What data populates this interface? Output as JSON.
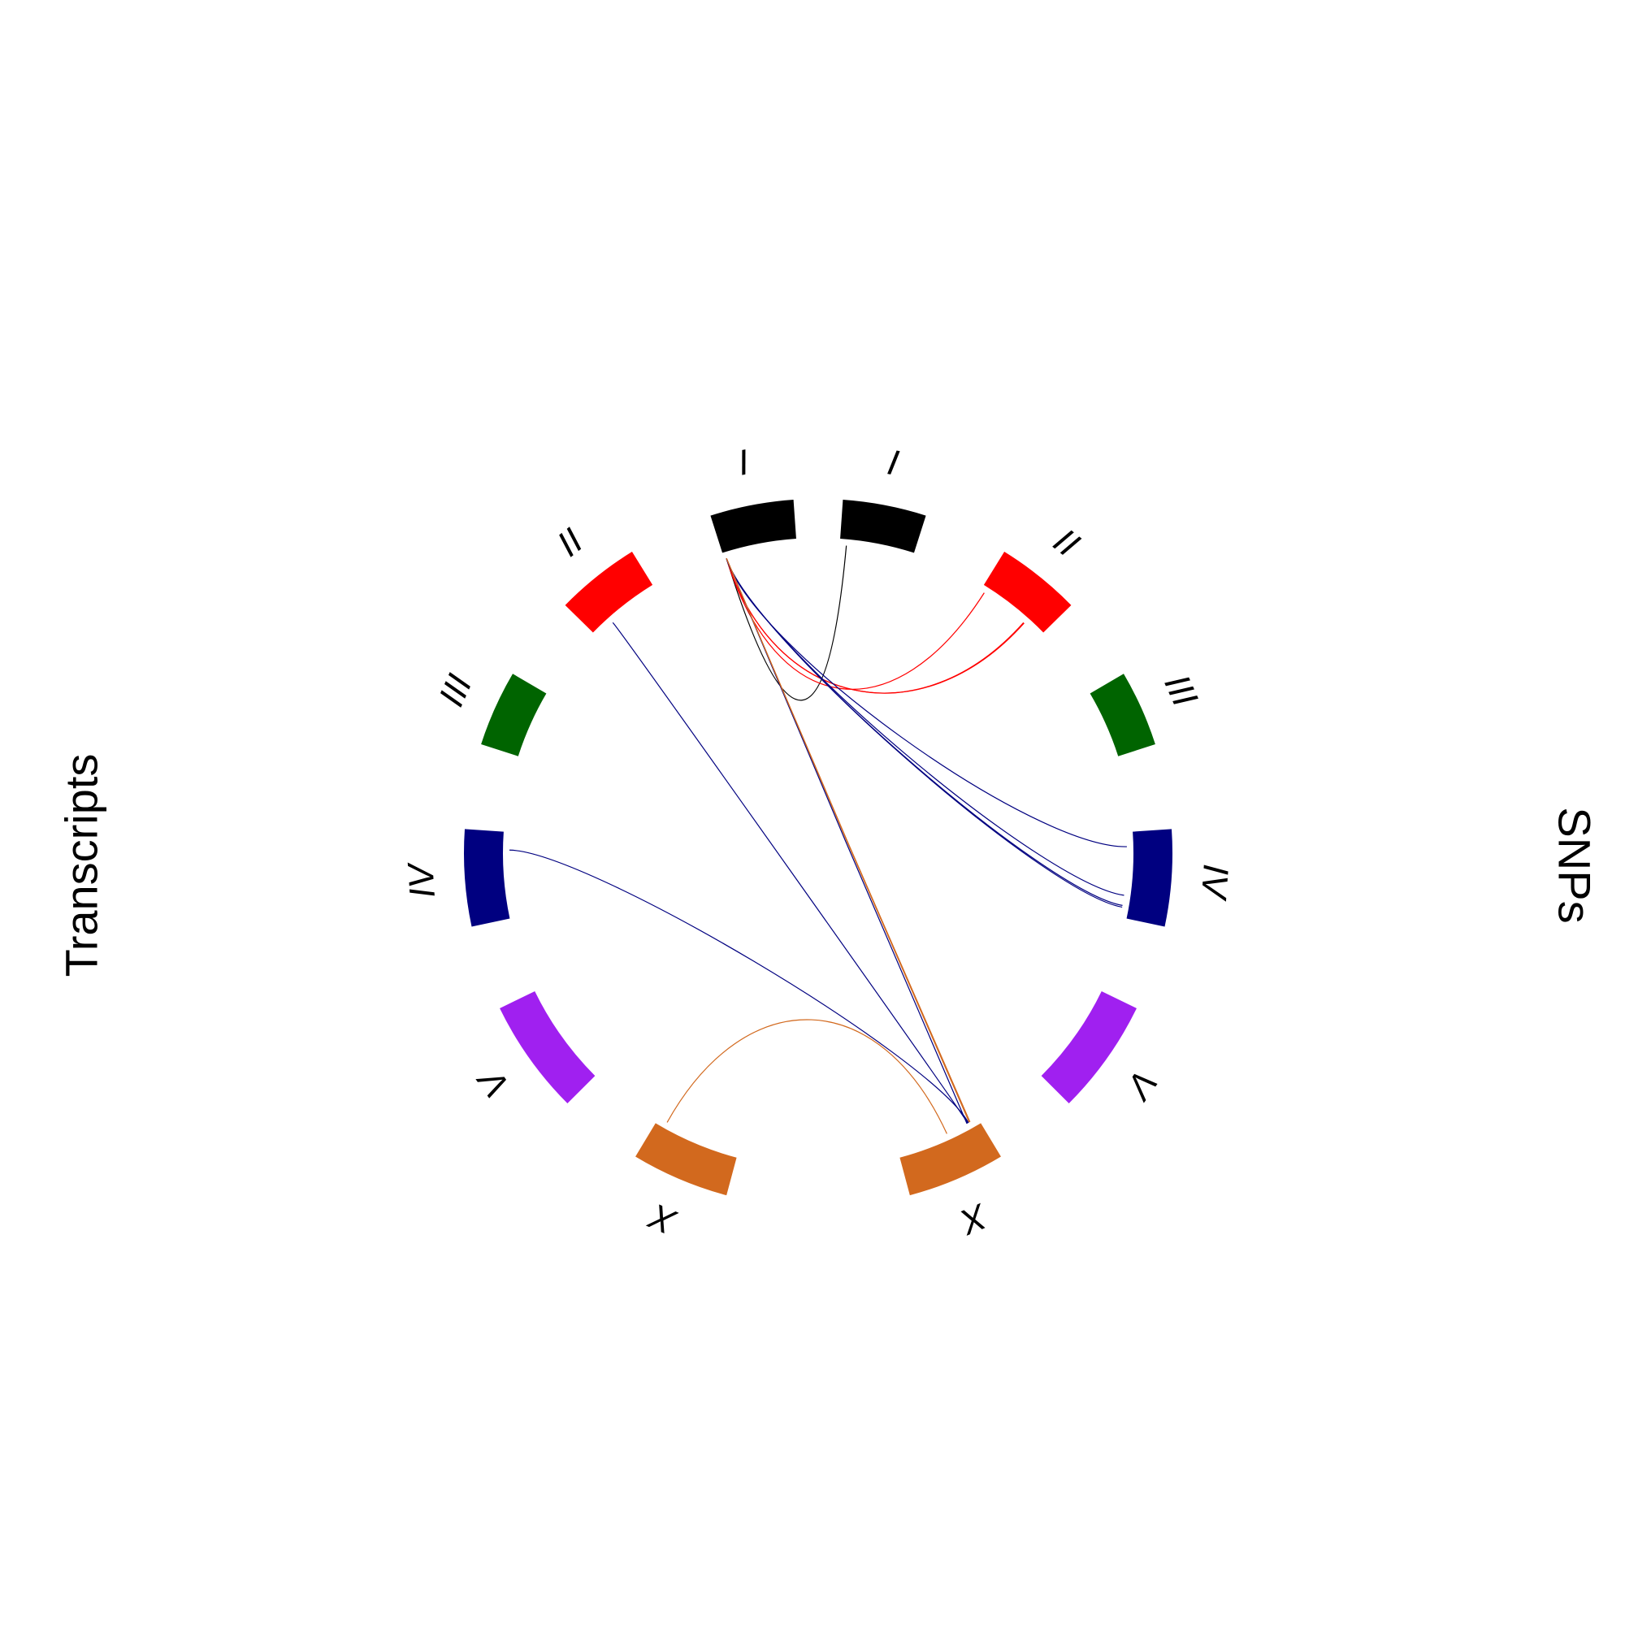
{
  "chart_data": {
    "type": "chord",
    "title": "",
    "left_label": "Transcripts",
    "right_label": "SNPs",
    "chromosomes": [
      {
        "name": "I",
        "color": "#000000",
        "length": 15.1
      },
      {
        "name": "II",
        "color": "#ff0000",
        "length": 15.3
      },
      {
        "name": "III",
        "color": "#006400",
        "length": 13.8
      },
      {
        "name": "IV",
        "color": "#000080",
        "length": 17.5
      },
      {
        "name": "V",
        "color": "#a020f0",
        "length": 20.9
      },
      {
        "name": "X",
        "color": "#d2691e",
        "length": 17.7
      }
    ],
    "links": [
      {
        "transcript": {
          "chrom": "I",
          "pos": 0.97
        },
        "snp": {
          "chrom": "I",
          "pos": 0.09
        },
        "color": "#000000"
      },
      {
        "transcript": {
          "chrom": "I",
          "pos": 0.97
        },
        "snp": {
          "chrom": "II",
          "pos": 0.06
        },
        "color": "#ff0000"
      },
      {
        "transcript": {
          "chrom": "I",
          "pos": 0.97
        },
        "snp": {
          "chrom": "II",
          "pos": 0.72
        },
        "color": "#ff0000"
      },
      {
        "transcript": {
          "chrom": "I",
          "pos": 0.97
        },
        "snp": {
          "chrom": "II",
          "pos": 0.73
        },
        "color": "#ff0000"
      },
      {
        "transcript": {
          "chrom": "I",
          "pos": 0.97
        },
        "snp": {
          "chrom": "IV",
          "pos": 0.17
        },
        "color": "#000080"
      },
      {
        "transcript": {
          "chrom": "I",
          "pos": 0.97
        },
        "snp": {
          "chrom": "IV",
          "pos": 0.74
        },
        "color": "#000080"
      },
      {
        "transcript": {
          "chrom": "I",
          "pos": 0.97
        },
        "snp": {
          "chrom": "IV",
          "pos": 0.86
        },
        "color": "#000080"
      },
      {
        "transcript": {
          "chrom": "I",
          "pos": 0.97
        },
        "snp": {
          "chrom": "IV",
          "pos": 0.88
        },
        "color": "#000080"
      },
      {
        "transcript": {
          "chrom": "I",
          "pos": 0.97
        },
        "snp": {
          "chrom": "X",
          "pos": 0.14
        },
        "color": "#000080"
      },
      {
        "transcript": {
          "chrom": "I",
          "pos": 0.97
        },
        "snp": {
          "chrom": "X",
          "pos": 0.1
        },
        "color": "#d2691e"
      },
      {
        "transcript": {
          "chrom": "I",
          "pos": 0.97
        },
        "snp": {
          "chrom": "X",
          "pos": 0.11
        },
        "color": "#d2691e"
      },
      {
        "transcript": {
          "chrom": "II",
          "pos": 0.72
        },
        "snp": {
          "chrom": "X",
          "pos": 0.13
        },
        "color": "#000080"
      },
      {
        "transcript": {
          "chrom": "IV",
          "pos": 0.21
        },
        "snp": {
          "chrom": "X",
          "pos": 0.12
        },
        "color": "#000080"
      },
      {
        "transcript": {
          "chrom": "X",
          "pos": 0.11
        },
        "snp": {
          "chrom": "X",
          "pos": 0.4
        },
        "color": "#d2691e"
      }
    ]
  }
}
